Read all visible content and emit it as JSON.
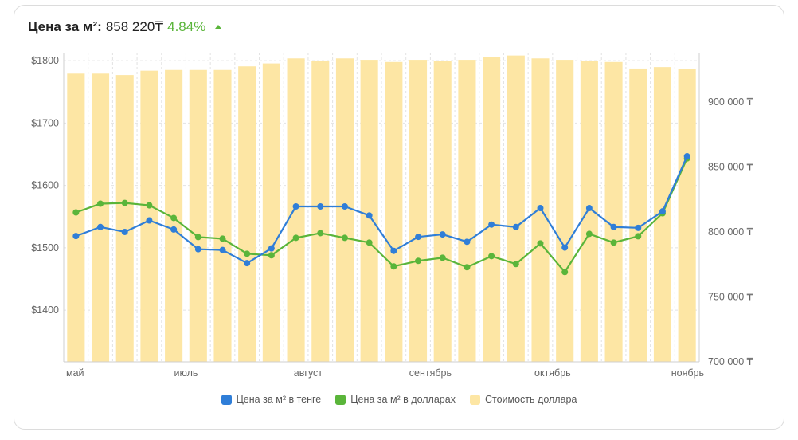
{
  "header": {
    "label": "Цена за м²:",
    "value": "858 220₸",
    "change": "4.84%",
    "change_color": "#5ab53a",
    "trend_icon": "triangle-up-icon"
  },
  "colors": {
    "tenge_line": "#2f7ed8",
    "usd_line": "#5ab53a",
    "bars": "#fde6a4",
    "grid": "#e2e2e2",
    "axis": "#cfcfcf"
  },
  "chart_data": {
    "type": "bar+line",
    "title": "Цена за м²: 858 220₸ 4.84%",
    "x_tick_labels": [
      "май",
      "июль",
      "август",
      "сентябрь",
      "октябрь",
      "ноябрь"
    ],
    "x_tick_indices": [
      0,
      5,
      10,
      15,
      20,
      25
    ],
    "n_points": 26,
    "left_axis": {
      "ticks": [
        1400,
        1500,
        1600,
        1700,
        1800
      ],
      "tick_labels": [
        "$1400",
        "$1500",
        "$1600",
        "$1700",
        "$1800"
      ],
      "range": [
        1317,
        1813
      ]
    },
    "right_axis": {
      "ticks": [
        700000,
        750000,
        800000,
        850000,
        900000
      ],
      "tick_labels": [
        "700 000 ₸",
        "750 000 ₸",
        "800 000 ₸",
        "850 000 ₸",
        "900 000 ₸"
      ],
      "range": [
        700000,
        938000
      ]
    },
    "bar_axis": {
      "range": [
        412.8,
        541.2
      ]
    },
    "grid": true,
    "legend_position": "bottom",
    "series": [
      {
        "name": "Цена за м² в тенге",
        "type": "line",
        "axis": "right",
        "values": [
          796835,
          803797,
          800000,
          808861,
          801899,
          786709,
          786076,
          775949,
          787342,
          819620,
          819620,
          819620,
          812658,
          785443,
          796203,
          798101,
          792405,
          805696,
          803797,
          818354,
          787975,
          818354,
          803797,
          803165,
          815823,
          858220
        ]
      },
      {
        "name": "Цена за м² в долларах",
        "type": "line",
        "axis": "left",
        "values": [
          1556.7,
          1570.7,
          1571.9,
          1568.1,
          1547.8,
          1517.2,
          1514.6,
          1490.4,
          1487.9,
          1515.9,
          1523.5,
          1515.9,
          1508.3,
          1470.1,
          1479.0,
          1484.0,
          1468.8,
          1486.6,
          1473.9,
          1507.0,
          1461.1,
          1522.3,
          1508.3,
          1518.5,
          1555.4,
          1643.3
        ]
      },
      {
        "name": "Стоимость доллара",
        "type": "bar",
        "axis": "hidden",
        "values": [
          532.5,
          532.5,
          531.9,
          533.7,
          534.0,
          534.0,
          534.0,
          535.5,
          536.7,
          538.8,
          537.9,
          538.8,
          538.2,
          537.3,
          538.2,
          537.6,
          538.2,
          539.4,
          540.0,
          538.8,
          538.2,
          537.9,
          537.3,
          534.6,
          535.2,
          534.3
        ]
      }
    ]
  },
  "legend": [
    {
      "label": "Цена за м² в тенге",
      "color": "#2f7ed8"
    },
    {
      "label": "Цена за м² в долларах",
      "color": "#5ab53a"
    },
    {
      "label": "Стоимость доллара",
      "color": "#fde6a4"
    }
  ]
}
